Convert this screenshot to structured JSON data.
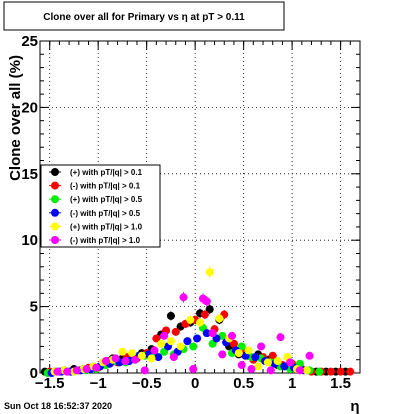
{
  "chart_data": {
    "type": "scatter",
    "title": "Clone  over all for Primary vs   η at pT > 0.11",
    "xlabel": "η",
    "ylabel": "Clone  over all (%)",
    "xlim": [
      -1.6,
      1.7
    ],
    "ylim": [
      0,
      25
    ],
    "xticks": [
      -1.5,
      -1,
      -0.5,
      0,
      0.5,
      1,
      1.5
    ],
    "xtick_labels": [
      "−1.5",
      "−1",
      "−0.5",
      "0",
      "0.5",
      "1",
      "1.5"
    ],
    "yticks": [
      0,
      5,
      10,
      15,
      20,
      25
    ],
    "ytick_labels": [
      "0",
      "5",
      "10",
      "15",
      "20",
      "25"
    ],
    "grid": true,
    "legend_position": "left",
    "footer_left": "Sun Oct 18 16:52:37 2020",
    "series": [
      {
        "name": "(+) with pT/|q| > 0.1",
        "color": "#000000",
        "x": [
          -1.55,
          -1.45,
          -1.35,
          -1.25,
          -1.15,
          -1.05,
          -0.95,
          -0.85,
          -0.75,
          -0.65,
          -0.55,
          -0.45,
          -0.35,
          -0.25,
          -0.15,
          -0.05,
          0.05,
          0.15,
          0.25,
          0.35,
          0.45,
          0.55,
          0.65,
          0.75,
          0.85,
          0.95,
          1.05,
          1.15,
          1.25,
          1.35,
          1.45,
          1.55
        ],
        "y": [
          0.1,
          0.1,
          0.2,
          0.3,
          0.3,
          0.5,
          0.8,
          1.1,
          1.1,
          1.2,
          1.5,
          1.8,
          2.9,
          4.3,
          3.5,
          3.8,
          4.5,
          4.8,
          4.0,
          2.0,
          1.4,
          1.3,
          1.4,
          1.0,
          0.6,
          0.5,
          0.3,
          0.2,
          0.1,
          0.1,
          0.1,
          0.1
        ]
      },
      {
        "name": "(-) with pT/|q| > 0.1",
        "color": "#ff0000",
        "x": [
          -1.5,
          -1.4,
          -1.3,
          -1.2,
          -1.1,
          -1.0,
          -0.9,
          -0.8,
          -0.7,
          -0.6,
          -0.5,
          -0.4,
          -0.3,
          -0.2,
          -0.1,
          0.0,
          0.1,
          0.2,
          0.3,
          0.4,
          0.5,
          0.6,
          0.7,
          0.8,
          0.9,
          1.0,
          1.1,
          1.2,
          1.3,
          1.4,
          1.5,
          1.6
        ],
        "y": [
          0.1,
          0.1,
          0.1,
          0.2,
          0.4,
          0.4,
          0.9,
          0.8,
          1.2,
          1.1,
          1.5,
          2.6,
          3.2,
          3.1,
          3.7,
          4.0,
          4.4,
          3.3,
          4.4,
          2.2,
          1.6,
          1.0,
          1.2,
          1.3,
          0.6,
          0.7,
          0.3,
          0.1,
          0.1,
          0.1,
          0.1,
          0.1
        ]
      },
      {
        "name": "(+) with pT/|q| > 0.5",
        "color": "#00ee00",
        "x": [
          -1.52,
          -1.42,
          -1.32,
          -1.22,
          -1.12,
          -1.02,
          -0.92,
          -0.82,
          -0.72,
          -0.62,
          -0.52,
          -0.42,
          -0.32,
          -0.22,
          -0.12,
          -0.02,
          0.08,
          0.18,
          0.28,
          0.38,
          0.48,
          0.58,
          0.68,
          0.78,
          0.88,
          0.98,
          1.08,
          1.18,
          1.28
        ],
        "y": [
          0.0,
          0.1,
          0.1,
          0.2,
          0.2,
          0.3,
          0.6,
          0.9,
          0.8,
          1.0,
          1.3,
          1.4,
          1.6,
          1.4,
          1.8,
          2.0,
          3.4,
          2.2,
          2.8,
          1.5,
          2.0,
          1.2,
          1.1,
          0.8,
          0.5,
          0.3,
          0.7,
          0.2,
          0.1
        ]
      },
      {
        "name": "(-) with pT/|q| > 0.5",
        "color": "#0000ff",
        "x": [
          -1.48,
          -1.38,
          -1.28,
          -1.18,
          -1.08,
          -0.98,
          -0.88,
          -0.78,
          -0.68,
          -0.58,
          -0.48,
          -0.38,
          -0.28,
          -0.18,
          -0.08,
          0.02,
          0.12,
          0.22,
          0.32,
          0.42,
          0.52,
          0.62,
          0.72,
          0.82,
          0.92,
          1.02,
          1.12
        ],
        "y": [
          0.0,
          0.1,
          0.1,
          0.2,
          0.3,
          0.5,
          0.7,
          0.8,
          0.9,
          1.3,
          1.4,
          1.2,
          2.0,
          1.6,
          2.4,
          2.6,
          3.0,
          2.6,
          2.3,
          1.7,
          1.3,
          1.2,
          0.9,
          0.7,
          0.5,
          0.4,
          0.2
        ]
      },
      {
        "name": "(+) with pT/|q| > 1.0",
        "color": "#ffff00",
        "x": [
          -1.45,
          -1.35,
          -1.25,
          -1.15,
          -1.05,
          -0.95,
          -0.85,
          -0.75,
          -0.65,
          -0.55,
          -0.45,
          -0.35,
          -0.25,
          -0.15,
          -0.05,
          0.05,
          0.15,
          0.25,
          0.35,
          0.45,
          0.55,
          0.65,
          0.75,
          0.85,
          0.95,
          1.05,
          1.15
        ],
        "y": [
          0.1,
          0.2,
          0.1,
          0.3,
          0.5,
          0.8,
          1.0,
          1.6,
          1.5,
          1.3,
          1.1,
          2.2,
          2.4,
          2.0,
          4.0,
          3.8,
          7.6,
          4.1,
          2.6,
          1.5,
          1.7,
          0.5,
          0.8,
          0.9,
          1.2,
          0.3,
          0.2
        ]
      },
      {
        "name": "(-) with pT/|q| > 1.0",
        "color": "#ff00ff",
        "x": [
          -1.42,
          -1.32,
          -1.22,
          -1.12,
          -1.02,
          -0.92,
          -0.82,
          -0.72,
          -0.62,
          -0.52,
          -0.42,
          -0.32,
          -0.22,
          -0.12,
          -0.02,
          0.08,
          0.12,
          0.18,
          0.28,
          0.38,
          0.48,
          0.58,
          0.68,
          0.78,
          0.88,
          0.98,
          1.08,
          1.18
        ],
        "y": [
          0.1,
          0.1,
          0.2,
          0.3,
          0.4,
          0.9,
          1.1,
          0.9,
          1.0,
          0.2,
          1.7,
          2.8,
          1.2,
          5.7,
          0.3,
          5.6,
          5.4,
          3.0,
          1.4,
          2.8,
          0.6,
          0.3,
          2.0,
          0.2,
          2.7,
          0.8,
          0.2,
          1.3
        ]
      }
    ]
  }
}
